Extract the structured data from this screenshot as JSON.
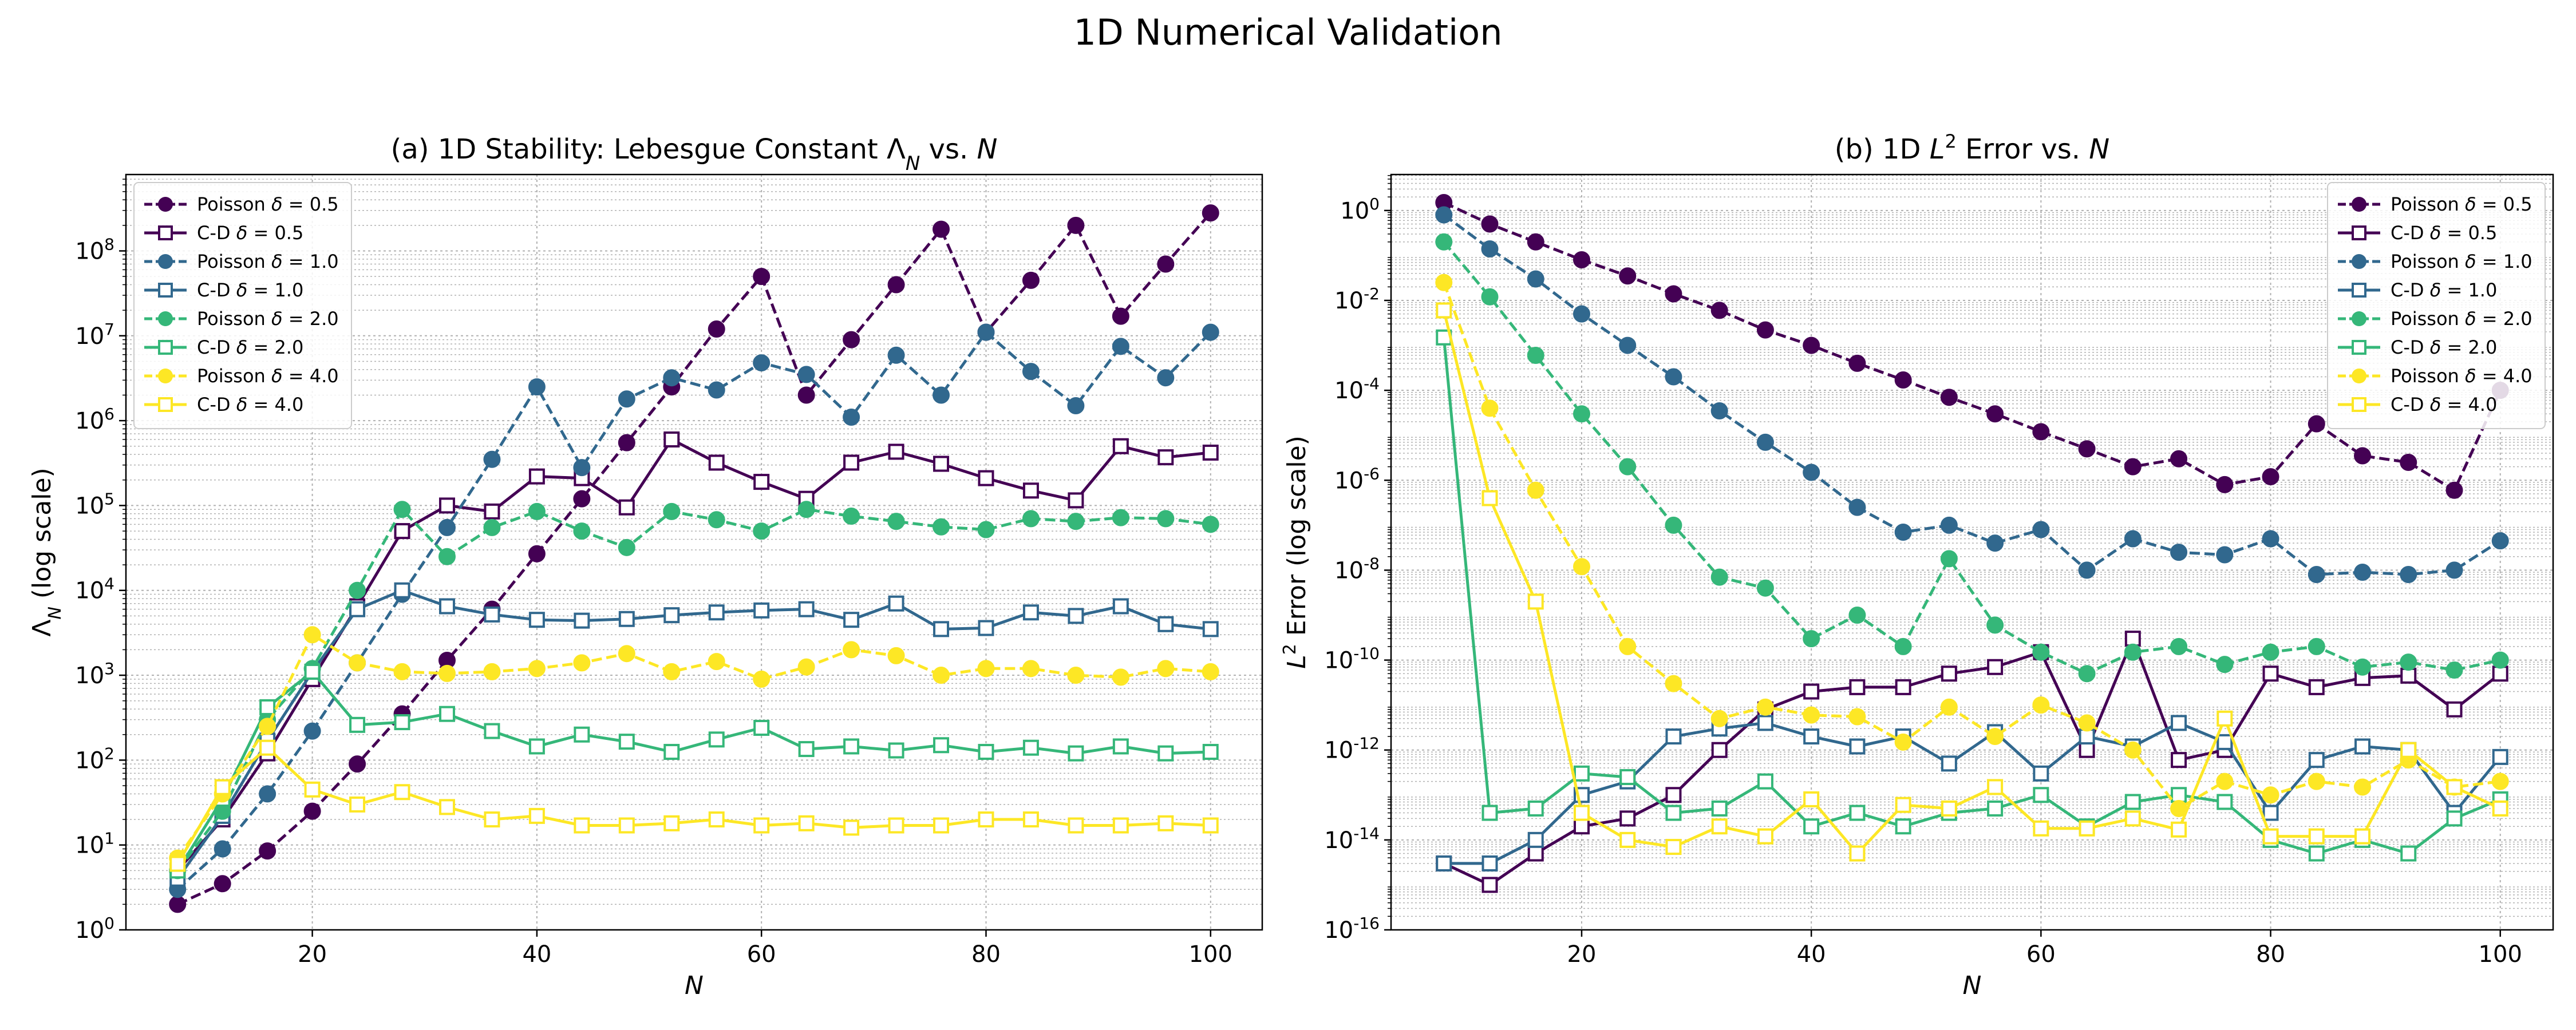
{
  "figure_title": "1D Numerical Validation",
  "chart_data": [
    {
      "type": "line",
      "title": "(a) 1D Stability: Lebesgue Constant Λ_N vs. N",
      "title_parts": [
        "(a) 1D Stability: Lebesgue Constant Λ",
        "N",
        " vs. ",
        "N"
      ],
      "xlabel": "N",
      "ylabel": "Λ_N (log scale)",
      "ylabel_parts": [
        "Λ",
        "N",
        " (log scale)"
      ],
      "xlim": [
        3.4,
        104.6
      ],
      "xticks": [
        20,
        40,
        60,
        80,
        100
      ],
      "yscale": "log",
      "ylim_exp": [
        0,
        8.9
      ],
      "yticks_exp": [
        0,
        1,
        2,
        3,
        4,
        5,
        6,
        7,
        8
      ],
      "grid": true,
      "legend_position": "upper left",
      "x": [
        8,
        12,
        16,
        20,
        24,
        28,
        32,
        36,
        40,
        44,
        48,
        52,
        56,
        60,
        64,
        68,
        72,
        76,
        80,
        84,
        88,
        92,
        96,
        100
      ],
      "series": [
        {
          "name": "Poisson δ = 0.5",
          "label_prefix": "Poisson ",
          "delta": "0.5",
          "color": "#440154",
          "marker": "circle",
          "dashed": true,
          "values": [
            2,
            3.5,
            8.5,
            25,
            90,
            350,
            1500,
            6000,
            27000,
            120000,
            550000,
            2500000,
            12000000,
            50000000,
            2000000,
            9000000,
            40000000,
            180000000,
            11000000,
            45000000,
            200000000,
            17000000,
            70000000,
            280000000
          ]
        },
        {
          "name": "C-D δ = 0.5",
          "label_prefix": "C-D ",
          "delta": "0.5",
          "color": "#440154",
          "marker": "square",
          "dashed": false,
          "values": [
            5,
            20,
            120,
            900,
            6500,
            50000,
            100000,
            85000,
            220000,
            210000,
            95000,
            600000,
            320000,
            190000,
            120000,
            320000,
            430000,
            310000,
            210000,
            150000,
            115000,
            500000,
            370000,
            420000
          ]
        },
        {
          "name": "Poisson δ = 1.0",
          "label_prefix": "Poisson ",
          "delta": "1.0",
          "color": "#31688e",
          "marker": "circle",
          "dashed": true,
          "values": [
            3,
            9,
            40,
            220,
            1400,
            9000,
            55000,
            350000,
            2500000,
            280000,
            1800000,
            3200000,
            2300000,
            4800000,
            3500000,
            1100000,
            5900000,
            2000000,
            11000000,
            3800000,
            1500000,
            7500000,
            3200000,
            11000000
          ]
        },
        {
          "name": "C-D δ = 1.0",
          "label_prefix": "C-D ",
          "delta": "1.0",
          "color": "#31688e",
          "marker": "square",
          "dashed": false,
          "values": [
            4,
            22,
            170,
            1100,
            6000,
            10000,
            6500,
            5200,
            4500,
            4400,
            4600,
            5100,
            5500,
            5800,
            6000,
            4500,
            7000,
            3500,
            3600,
            5500,
            5000,
            6500,
            4000,
            3500
          ]
        },
        {
          "name": "Poisson δ = 2.0",
          "label_prefix": "Poisson ",
          "delta": "2.0",
          "color": "#35b779",
          "marker": "circle",
          "dashed": true,
          "values": [
            5,
            25,
            300,
            1200,
            10000,
            90000,
            25000,
            55000,
            85000,
            50000,
            32000,
            85000,
            68000,
            50000,
            90000,
            75000,
            65000,
            56000,
            52000,
            70000,
            65000,
            72000,
            70000,
            60000
          ]
        },
        {
          "name": "C-D δ = 2.0",
          "label_prefix": "C-D ",
          "delta": "2.0",
          "color": "#35b779",
          "marker": "square",
          "dashed": false,
          "values": [
            5,
            35,
            420,
            1100,
            260,
            280,
            350,
            220,
            145,
            200,
            165,
            125,
            175,
            240,
            135,
            145,
            130,
            150,
            125,
            140,
            120,
            145,
            120,
            125
          ]
        },
        {
          "name": "Poisson δ = 4.0",
          "label_prefix": "Poisson ",
          "delta": "4.0",
          "color": "#fde725",
          "marker": "circle",
          "dashed": true,
          "values": [
            7,
            40,
            250,
            3000,
            1400,
            1100,
            1050,
            1100,
            1200,
            1400,
            1800,
            1100,
            1450,
            900,
            1250,
            2000,
            1700,
            1000,
            1200,
            1200,
            1000,
            950,
            1200,
            1100
          ]
        },
        {
          "name": "C-D δ = 4.0",
          "label_prefix": "C-D ",
          "delta": "4.0",
          "color": "#fde725",
          "marker": "square",
          "dashed": false,
          "values": [
            6,
            48,
            140,
            45,
            30,
            42,
            28,
            20,
            22,
            17,
            17,
            18,
            20,
            17,
            18,
            16,
            17,
            17,
            20,
            20,
            17,
            17,
            18,
            17
          ]
        }
      ]
    },
    {
      "type": "line",
      "title": "(b) 1D L^2 Error vs. N",
      "title_parts": [
        "(b) 1D ",
        "L",
        "2",
        " Error vs. ",
        "N"
      ],
      "xlabel": "N",
      "ylabel": "L^2 Error (log scale)",
      "ylabel_parts": [
        "L",
        "2",
        " Error (log scale)"
      ],
      "xlim": [
        3.4,
        104.6
      ],
      "xticks": [
        20,
        40,
        60,
        80,
        100
      ],
      "yscale": "log",
      "ylim_exp": [
        -16,
        0.8
      ],
      "yticks_exp": [
        -16,
        -14,
        -12,
        -10,
        -8,
        -6,
        -4,
        -2,
        0
      ],
      "grid": true,
      "legend_position": "upper right",
      "x": [
        8,
        12,
        16,
        20,
        24,
        28,
        32,
        36,
        40,
        44,
        48,
        52,
        56,
        60,
        64,
        68,
        72,
        76,
        80,
        84,
        88,
        92,
        96,
        100
      ],
      "series": [
        {
          "name": "Poisson δ = 0.5",
          "label_prefix": "Poisson ",
          "delta": "0.5",
          "color": "#440154",
          "marker": "circle",
          "dashed": true,
          "values": [
            1.5,
            0.5,
            0.2,
            0.08,
            0.035,
            0.014,
            0.006,
            0.0022,
            0.001,
            0.0004,
            0.00017,
            7e-05,
            3e-05,
            1.2e-05,
            5e-06,
            2e-06,
            3e-06,
            8e-07,
            1.2e-06,
            1.8e-05,
            3.5e-06,
            2.5e-06,
            6e-07,
            0.0001
          ]
        },
        {
          "name": "C-D δ = 0.5",
          "label_prefix": "C-D ",
          "delta": "0.5",
          "color": "#440154",
          "marker": "square",
          "dashed": false,
          "values": [
            3e-15,
            1e-15,
            5e-15,
            2e-14,
            3e-14,
            1e-13,
            1e-12,
            8e-12,
            2e-11,
            2.5e-11,
            2.5e-11,
            5e-11,
            7e-11,
            1.5e-10,
            1e-12,
            3e-10,
            6e-13,
            1e-12,
            5e-11,
            2.5e-11,
            4e-11,
            4.5e-11,
            8e-12,
            5e-11
          ]
        },
        {
          "name": "Poisson δ = 1.0",
          "label_prefix": "Poisson ",
          "delta": "1.0",
          "color": "#31688e",
          "marker": "circle",
          "dashed": true,
          "values": [
            0.8,
            0.14,
            0.03,
            0.005,
            0.001,
            0.0002,
            3.5e-05,
            7e-06,
            1.5e-06,
            2.5e-07,
            7e-08,
            1e-07,
            4e-08,
            8e-08,
            1e-08,
            5e-08,
            2.5e-08,
            2.2e-08,
            5e-08,
            8e-09,
            9e-09,
            8e-09,
            1e-08,
            4.5e-08
          ]
        },
        {
          "name": "C-D δ = 1.0",
          "label_prefix": "C-D ",
          "delta": "1.0",
          "color": "#31688e",
          "marker": "square",
          "dashed": false,
          "values": [
            3e-15,
            3e-15,
            1e-14,
            1e-13,
            2e-13,
            2e-12,
            3e-12,
            4e-12,
            2e-12,
            1.2e-12,
            2e-12,
            5e-13,
            2.5e-12,
            3e-13,
            2e-12,
            1.2e-12,
            4e-12,
            1.5e-12,
            4e-14,
            6e-13,
            1.2e-12,
            1e-12,
            4e-14,
            7e-13
          ]
        },
        {
          "name": "Poisson δ = 2.0",
          "label_prefix": "Poisson ",
          "delta": "2.0",
          "color": "#35b779",
          "marker": "circle",
          "dashed": true,
          "values": [
            0.2,
            0.012,
            0.0006,
            3e-05,
            2e-06,
            1e-07,
            7e-09,
            4e-09,
            3e-10,
            1e-09,
            2e-10,
            1.8e-08,
            6e-10,
            1.5e-10,
            5e-11,
            1.5e-10,
            2e-10,
            8e-11,
            1.5e-10,
            2e-10,
            7e-11,
            9e-11,
            6e-11,
            1e-10
          ]
        },
        {
          "name": "C-D δ = 2.0",
          "label_prefix": "C-D ",
          "delta": "2.0",
          "color": "#35b779",
          "marker": "square",
          "dashed": false,
          "values": [
            0.0015,
            4e-14,
            5e-14,
            3e-13,
            2.5e-13,
            4e-14,
            5e-14,
            2e-13,
            2e-14,
            4e-14,
            2e-14,
            4e-14,
            5e-14,
            1e-13,
            2e-14,
            7e-14,
            1e-13,
            7e-14,
            1e-14,
            5e-15,
            1e-14,
            5e-15,
            3e-14,
            8e-14
          ]
        },
        {
          "name": "Poisson δ = 4.0",
          "label_prefix": "Poisson ",
          "delta": "4.0",
          "color": "#fde725",
          "marker": "circle",
          "dashed": true,
          "values": [
            0.025,
            4e-05,
            6e-07,
            1.2e-08,
            2e-10,
            3e-11,
            5e-12,
            9e-12,
            6e-12,
            5.5e-12,
            1.5e-12,
            9e-12,
            2e-12,
            1e-11,
            4e-12,
            1e-12,
            5e-14,
            2e-13,
            1e-13,
            2e-13,
            1.5e-13,
            6e-13,
            1.5e-13,
            2e-13
          ]
        },
        {
          "name": "C-D δ = 4.0",
          "label_prefix": "C-D ",
          "delta": "4.0",
          "color": "#fde725",
          "marker": "square",
          "dashed": false,
          "values": [
            0.006,
            4e-07,
            2e-09,
            4e-14,
            1e-14,
            7e-15,
            2e-14,
            1.2e-14,
            8e-14,
            5e-15,
            6e-14,
            5e-14,
            1.5e-13,
            1.8e-14,
            1.8e-14,
            3e-14,
            1.7e-14,
            5e-12,
            1.2e-14,
            1.2e-14,
            1.2e-14,
            1e-12,
            1.5e-13,
            5e-14
          ]
        }
      ]
    }
  ]
}
